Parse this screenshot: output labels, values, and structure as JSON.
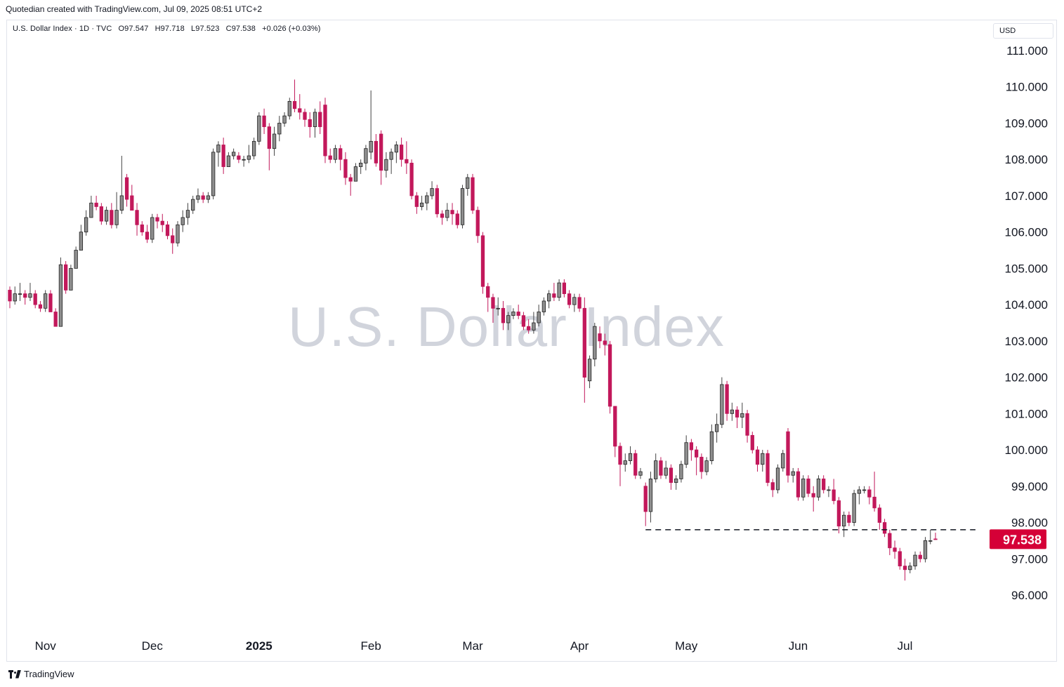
{
  "header": {
    "text": "Quotedian created with TradingView.com, Jul 09, 2025 08:51 UTC+2"
  },
  "legend": {
    "symbol": "U.S. Dollar Index · 1D · TVC",
    "open": "O97.547",
    "high": "H97.718",
    "low": "L97.523",
    "close": "C97.538",
    "change": "+0.026 (+0.03%)"
  },
  "currency": "USD",
  "watermark": "U.S. Dollar Index",
  "footer": {
    "brand": "TradingView"
  },
  "colors": {
    "up": "#8e8e8e",
    "down": "#c2185b",
    "price_tag": "#d50037",
    "grid": "#f0f3fa"
  },
  "chart_data": {
    "type": "candlestick",
    "title": "U.S. Dollar Index",
    "y_axis": {
      "ticks": [
        "111.000",
        "110.000",
        "109.000",
        "108.000",
        "107.000",
        "106.000",
        "105.000",
        "104.000",
        "103.000",
        "102.000",
        "101.000",
        "100.000",
        "99.000",
        "98.000",
        "97.000",
        "96.000"
      ],
      "range": [
        95.0,
        111.5
      ]
    },
    "x_axis": {
      "ticks": [
        {
          "label": "Nov",
          "date": "2024-11-01",
          "bold": false
        },
        {
          "label": "Dec",
          "date": "2024-12-02",
          "bold": false
        },
        {
          "label": "2025",
          "date": "2025-01-02",
          "bold": true
        },
        {
          "label": "Feb",
          "date": "2025-02-03",
          "bold": false
        },
        {
          "label": "Mar",
          "date": "2025-03-03",
          "bold": false
        },
        {
          "label": "Apr",
          "date": "2025-04-01",
          "bold": false
        },
        {
          "label": "May",
          "date": "2025-05-01",
          "bold": false
        },
        {
          "label": "Jun",
          "date": "2025-06-02",
          "bold": false
        },
        {
          "label": "Jul",
          "date": "2025-07-01",
          "bold": false
        }
      ]
    },
    "last_price": "97.538",
    "support_line": {
      "level": 97.8,
      "from": "2025-04-21",
      "to": "2025-07-20"
    },
    "candles": [
      [
        "2024-10-23",
        104.4,
        104.5,
        103.9,
        104.1
      ],
      [
        "2024-10-24",
        104.1,
        104.5,
        104.0,
        104.3
      ],
      [
        "2024-10-25",
        104.3,
        104.6,
        104.1,
        104.3
      ],
      [
        "2024-10-28",
        104.3,
        104.4,
        104.0,
        104.2
      ],
      [
        "2024-10-29",
        104.2,
        104.6,
        104.1,
        104.3
      ],
      [
        "2024-10-30",
        104.3,
        104.4,
        103.9,
        104.0
      ],
      [
        "2024-10-31",
        104.0,
        104.1,
        103.8,
        103.9
      ],
      [
        "2024-11-01",
        103.9,
        104.4,
        103.8,
        104.3
      ],
      [
        "2024-11-04",
        104.3,
        104.4,
        103.8,
        103.8
      ],
      [
        "2024-11-05",
        103.8,
        103.9,
        103.4,
        103.4
      ],
      [
        "2024-11-06",
        103.4,
        105.3,
        103.4,
        105.1
      ],
      [
        "2024-11-07",
        105.1,
        105.2,
        104.3,
        104.4
      ],
      [
        "2024-11-08",
        104.4,
        105.1,
        104.4,
        105.0
      ],
      [
        "2024-11-11",
        105.0,
        105.6,
        105.0,
        105.5
      ],
      [
        "2024-11-12",
        105.5,
        106.2,
        105.5,
        106.0
      ],
      [
        "2024-11-13",
        106.0,
        106.6,
        105.9,
        106.4
      ],
      [
        "2024-11-14",
        106.4,
        107.0,
        106.4,
        106.8
      ],
      [
        "2024-11-15",
        106.8,
        107.0,
        106.6,
        106.7
      ],
      [
        "2024-11-18",
        106.7,
        106.8,
        106.2,
        106.3
      ],
      [
        "2024-11-19",
        106.3,
        106.7,
        106.2,
        106.6
      ],
      [
        "2024-11-20",
        106.6,
        106.8,
        106.1,
        106.2
      ],
      [
        "2024-11-21",
        106.2,
        107.1,
        106.1,
        106.6
      ],
      [
        "2024-11-22",
        106.6,
        108.1,
        106.5,
        107.0
      ],
      [
        "2024-11-25",
        107.5,
        107.6,
        106.7,
        106.9
      ],
      [
        "2024-11-26",
        107.0,
        107.3,
        106.6,
        106.6
      ],
      [
        "2024-11-27",
        106.6,
        106.8,
        105.9,
        106.2
      ],
      [
        "2024-11-28",
        106.2,
        106.3,
        105.9,
        106.0
      ],
      [
        "2024-11-29",
        106.0,
        106.2,
        105.7,
        105.8
      ],
      [
        "2024-12-02",
        105.8,
        106.5,
        105.7,
        106.4
      ],
      [
        "2024-12-03",
        106.4,
        106.5,
        106.1,
        106.3
      ],
      [
        "2024-12-04",
        106.3,
        106.5,
        106.0,
        106.2
      ],
      [
        "2024-12-05",
        106.2,
        106.3,
        105.8,
        105.9
      ],
      [
        "2024-12-06",
        105.9,
        106.1,
        105.4,
        105.7
      ],
      [
        "2024-12-09",
        105.7,
        106.3,
        105.6,
        106.2
      ],
      [
        "2024-12-10",
        106.2,
        106.6,
        106.0,
        106.4
      ],
      [
        "2024-12-11",
        106.4,
        106.8,
        106.2,
        106.6
      ],
      [
        "2024-12-12",
        106.6,
        107.0,
        106.5,
        106.9
      ],
      [
        "2024-12-13",
        106.9,
        107.2,
        106.8,
        107.0
      ],
      [
        "2024-12-16",
        107.0,
        107.1,
        106.8,
        106.9
      ],
      [
        "2024-12-17",
        106.9,
        107.1,
        106.8,
        107.0
      ],
      [
        "2024-12-18",
        107.0,
        108.3,
        106.9,
        108.2
      ],
      [
        "2024-12-19",
        108.2,
        108.5,
        107.8,
        108.4
      ],
      [
        "2024-12-20",
        108.4,
        108.6,
        107.6,
        107.8
      ],
      [
        "2024-12-23",
        107.8,
        108.2,
        107.8,
        108.1
      ],
      [
        "2024-12-24",
        108.1,
        108.3,
        108.0,
        108.2
      ],
      [
        "2024-12-26",
        108.1,
        108.2,
        107.9,
        108.0
      ],
      [
        "2024-12-27",
        108.0,
        108.1,
        107.8,
        108.0
      ],
      [
        "2024-12-30",
        108.0,
        108.4,
        107.9,
        108.1
      ],
      [
        "2024-12-31",
        108.1,
        108.6,
        108.0,
        108.5
      ],
      [
        "2025-01-02",
        108.5,
        109.3,
        108.4,
        109.2
      ],
      [
        "2025-01-03",
        109.2,
        109.4,
        108.7,
        108.9
      ],
      [
        "2025-01-06",
        108.9,
        109.0,
        107.7,
        108.3
      ],
      [
        "2025-01-07",
        108.3,
        108.9,
        108.1,
        108.7
      ],
      [
        "2025-01-08",
        108.7,
        109.2,
        108.5,
        109.0
      ],
      [
        "2025-01-09",
        109.0,
        109.3,
        108.9,
        109.2
      ],
      [
        "2025-01-10",
        109.2,
        109.7,
        109.1,
        109.6
      ],
      [
        "2025-01-13",
        109.6,
        110.2,
        109.3,
        109.4
      ],
      [
        "2025-01-14",
        109.4,
        109.8,
        109.1,
        109.3
      ],
      [
        "2025-01-15",
        109.3,
        109.4,
        108.9,
        109.1
      ],
      [
        "2025-01-16",
        109.1,
        109.3,
        108.6,
        108.9
      ],
      [
        "2025-01-17",
        108.9,
        109.4,
        108.6,
        109.3
      ],
      [
        "2025-01-20",
        109.3,
        109.6,
        108.7,
        108.9
      ],
      [
        "2025-01-21",
        109.5,
        109.7,
        107.9,
        108.1
      ],
      [
        "2025-01-22",
        108.1,
        108.3,
        107.9,
        108.0
      ],
      [
        "2025-01-23",
        108.0,
        108.4,
        107.9,
        108.3
      ],
      [
        "2025-01-24",
        108.3,
        108.4,
        107.7,
        108.0
      ],
      [
        "2025-01-27",
        108.0,
        108.2,
        107.3,
        107.5
      ],
      [
        "2025-01-28",
        107.5,
        107.6,
        107.0,
        107.4
      ],
      [
        "2025-01-29",
        107.4,
        107.9,
        107.4,
        107.8
      ],
      [
        "2025-01-30",
        107.8,
        108.0,
        107.6,
        107.9
      ],
      [
        "2025-01-31",
        107.9,
        108.4,
        107.7,
        108.3
      ],
      [
        "2025-02-03",
        108.2,
        109.9,
        108.0,
        108.5
      ],
      [
        "2025-02-04",
        108.5,
        108.7,
        107.8,
        107.9
      ],
      [
        "2025-02-05",
        108.7,
        108.8,
        107.3,
        107.7
      ],
      [
        "2025-02-06",
        107.7,
        108.2,
        107.5,
        108.0
      ],
      [
        "2025-02-07",
        108.0,
        108.3,
        107.6,
        108.2
      ],
      [
        "2025-02-10",
        108.2,
        108.5,
        107.9,
        108.4
      ],
      [
        "2025-02-11",
        108.4,
        108.6,
        107.8,
        108.0
      ],
      [
        "2025-02-12",
        108.0,
        108.5,
        107.6,
        107.9
      ],
      [
        "2025-02-13",
        107.9,
        108.0,
        106.9,
        107.0
      ],
      [
        "2025-02-14",
        107.0,
        107.1,
        106.5,
        106.7
      ],
      [
        "2025-02-17",
        106.7,
        107.0,
        106.6,
        106.8
      ],
      [
        "2025-02-18",
        106.8,
        107.1,
        106.6,
        107.0
      ],
      [
        "2025-02-19",
        107.0,
        107.4,
        106.9,
        107.2
      ],
      [
        "2025-02-20",
        107.2,
        107.3,
        106.4,
        106.5
      ],
      [
        "2025-02-21",
        106.5,
        106.6,
        106.2,
        106.4
      ],
      [
        "2025-02-24",
        106.4,
        106.8,
        106.3,
        106.6
      ],
      [
        "2025-02-25",
        106.6,
        106.8,
        106.2,
        106.5
      ],
      [
        "2025-02-26",
        106.5,
        106.6,
        106.1,
        106.2
      ],
      [
        "2025-02-27",
        106.2,
        107.3,
        106.1,
        107.2
      ],
      [
        "2025-02-28",
        107.2,
        107.6,
        107.0,
        107.5
      ],
      [
        "2025-03-03",
        107.5,
        107.6,
        106.5,
        106.6
      ],
      [
        "2025-03-04",
        106.6,
        106.7,
        105.7,
        105.9
      ],
      [
        "2025-03-05",
        105.9,
        106.0,
        104.3,
        104.5
      ],
      [
        "2025-03-06",
        104.5,
        104.6,
        103.8,
        104.2
      ],
      [
        "2025-03-07",
        104.2,
        104.3,
        103.5,
        103.9
      ],
      [
        "2025-03-10",
        103.9,
        104.2,
        103.7,
        103.9
      ],
      [
        "2025-03-11",
        103.9,
        104.1,
        103.3,
        103.5
      ],
      [
        "2025-03-12",
        103.5,
        103.8,
        103.3,
        103.7
      ],
      [
        "2025-03-13",
        103.7,
        103.9,
        103.6,
        103.8
      ],
      [
        "2025-03-14",
        103.8,
        104.0,
        103.6,
        103.7
      ],
      [
        "2025-03-17",
        103.7,
        103.8,
        103.3,
        103.4
      ],
      [
        "2025-03-18",
        103.4,
        103.6,
        103.2,
        103.3
      ],
      [
        "2025-03-19",
        103.3,
        103.8,
        103.2,
        103.5
      ],
      [
        "2025-03-20",
        103.5,
        104.0,
        103.4,
        103.8
      ],
      [
        "2025-03-21",
        103.8,
        104.2,
        103.7,
        104.1
      ],
      [
        "2025-03-24",
        104.1,
        104.4,
        103.9,
        104.3
      ],
      [
        "2025-03-25",
        104.3,
        104.6,
        104.1,
        104.2
      ],
      [
        "2025-03-26",
        104.2,
        104.7,
        104.1,
        104.6
      ],
      [
        "2025-03-27",
        104.6,
        104.7,
        104.2,
        104.3
      ],
      [
        "2025-03-28",
        104.3,
        104.4,
        103.9,
        104.0
      ],
      [
        "2025-03-31",
        104.0,
        104.3,
        103.8,
        104.2
      ],
      [
        "2025-04-01",
        104.2,
        104.3,
        103.8,
        103.9
      ],
      [
        "2025-04-02",
        103.9,
        104.2,
        101.3,
        102.0
      ],
      [
        "2025-04-03",
        101.9,
        102.6,
        101.7,
        102.5
      ],
      [
        "2025-04-04",
        102.5,
        103.5,
        102.3,
        103.4
      ],
      [
        "2025-04-07",
        103.2,
        103.4,
        102.8,
        103.0
      ],
      [
        "2025-04-08",
        103.0,
        103.2,
        102.6,
        102.9
      ],
      [
        "2025-04-09",
        102.9,
        103.0,
        101.0,
        101.2
      ],
      [
        "2025-04-10",
        101.2,
        101.2,
        99.8,
        100.1
      ],
      [
        "2025-04-11",
        100.1,
        100.2,
        99.0,
        99.6
      ],
      [
        "2025-04-14",
        99.6,
        99.9,
        99.4,
        99.7
      ],
      [
        "2025-04-15",
        99.7,
        100.1,
        99.6,
        99.9
      ],
      [
        "2025-04-16",
        99.9,
        100.0,
        99.2,
        99.3
      ],
      [
        "2025-04-17",
        99.3,
        99.5,
        99.2,
        99.4
      ],
      [
        "2025-04-21",
        99.0,
        99.1,
        97.9,
        98.3
      ],
      [
        "2025-04-22",
        98.3,
        99.4,
        98.0,
        99.2
      ],
      [
        "2025-04-23",
        99.2,
        99.9,
        99.1,
        99.7
      ],
      [
        "2025-04-24",
        99.7,
        99.8,
        99.2,
        99.3
      ],
      [
        "2025-04-25",
        99.3,
        99.7,
        99.2,
        99.5
      ],
      [
        "2025-04-28",
        99.5,
        99.6,
        98.9,
        99.1
      ],
      [
        "2025-04-29",
        99.1,
        99.3,
        98.9,
        99.2
      ],
      [
        "2025-04-30",
        99.2,
        99.7,
        99.1,
        99.6
      ],
      [
        "2025-05-01",
        99.6,
        100.4,
        99.5,
        100.2
      ],
      [
        "2025-05-02",
        100.2,
        100.3,
        99.7,
        100.0
      ],
      [
        "2025-05-05",
        100.0,
        100.1,
        99.3,
        99.8
      ],
      [
        "2025-05-06",
        99.8,
        99.9,
        99.2,
        99.4
      ],
      [
        "2025-05-07",
        99.4,
        99.8,
        99.3,
        99.7
      ],
      [
        "2025-05-08",
        99.7,
        100.7,
        99.6,
        100.5
      ],
      [
        "2025-05-09",
        100.5,
        101.0,
        100.2,
        100.7
      ],
      [
        "2025-05-12",
        100.7,
        102.0,
        100.6,
        101.8
      ],
      [
        "2025-05-13",
        101.8,
        101.9,
        100.8,
        101.0
      ],
      [
        "2025-05-14",
        101.0,
        101.3,
        100.8,
        101.1
      ],
      [
        "2025-05-15",
        101.1,
        101.2,
        100.6,
        100.9
      ],
      [
        "2025-05-16",
        100.9,
        101.3,
        100.6,
        101.0
      ],
      [
        "2025-05-19",
        101.0,
        101.1,
        100.2,
        100.4
      ],
      [
        "2025-05-20",
        100.4,
        100.5,
        99.9,
        100.0
      ],
      [
        "2025-05-21",
        100.0,
        100.1,
        99.4,
        99.6
      ],
      [
        "2025-05-22",
        99.6,
        100.0,
        99.4,
        99.9
      ],
      [
        "2025-05-23",
        99.9,
        100.0,
        99.0,
        99.1
      ],
      [
        "2025-05-26",
        99.1,
        99.2,
        98.7,
        98.9
      ],
      [
        "2025-05-27",
        98.9,
        99.6,
        98.8,
        99.5
      ],
      [
        "2025-05-28",
        99.5,
        100.0,
        99.4,
        99.9
      ],
      [
        "2025-05-29",
        100.5,
        100.6,
        99.1,
        99.3
      ],
      [
        "2025-05-30",
        99.3,
        99.5,
        99.1,
        99.4
      ],
      [
        "2025-06-02",
        99.4,
        99.5,
        98.6,
        98.7
      ],
      [
        "2025-06-03",
        98.7,
        99.3,
        98.6,
        99.2
      ],
      [
        "2025-06-04",
        99.2,
        99.3,
        98.7,
        98.8
      ],
      [
        "2025-06-05",
        98.8,
        99.0,
        98.3,
        98.7
      ],
      [
        "2025-06-06",
        98.7,
        99.3,
        98.6,
        99.2
      ],
      [
        "2025-06-09",
        99.2,
        99.3,
        98.8,
        98.9
      ],
      [
        "2025-06-10",
        98.9,
        99.0,
        98.7,
        98.9
      ],
      [
        "2025-06-11",
        98.9,
        99.2,
        98.5,
        98.6
      ],
      [
        "2025-06-12",
        98.6,
        98.7,
        97.7,
        97.9
      ],
      [
        "2025-06-13",
        97.9,
        98.3,
        97.6,
        98.2
      ],
      [
        "2025-06-16",
        98.2,
        98.3,
        97.9,
        98.0
      ],
      [
        "2025-06-17",
        98.0,
        98.9,
        97.9,
        98.8
      ],
      [
        "2025-06-18",
        98.8,
        99.0,
        98.5,
        98.9
      ],
      [
        "2025-06-19",
        98.9,
        99.0,
        98.8,
        98.9
      ],
      [
        "2025-06-20",
        98.9,
        99.0,
        98.5,
        98.7
      ],
      [
        "2025-06-23",
        98.7,
        99.4,
        98.3,
        98.4
      ],
      [
        "2025-06-24",
        98.4,
        98.5,
        97.8,
        98.0
      ],
      [
        "2025-06-25",
        98.0,
        98.1,
        97.6,
        97.7
      ],
      [
        "2025-06-26",
        97.7,
        97.8,
        97.1,
        97.3
      ],
      [
        "2025-06-27",
        97.3,
        97.5,
        97.0,
        97.2
      ],
      [
        "2025-06-30",
        97.2,
        97.3,
        96.7,
        96.8
      ],
      [
        "2025-07-01",
        96.8,
        97.0,
        96.4,
        96.7
      ],
      [
        "2025-07-02",
        96.7,
        96.9,
        96.6,
        96.8
      ],
      [
        "2025-07-03",
        96.8,
        97.2,
        96.7,
        97.1
      ],
      [
        "2025-07-04",
        97.1,
        97.2,
        96.9,
        97.0
      ],
      [
        "2025-07-07",
        97.0,
        97.6,
        96.9,
        97.5
      ],
      [
        "2025-07-08",
        97.5,
        97.8,
        97.4,
        97.5
      ],
      [
        "2025-07-09",
        97.547,
        97.718,
        97.523,
        97.538
      ]
    ]
  }
}
